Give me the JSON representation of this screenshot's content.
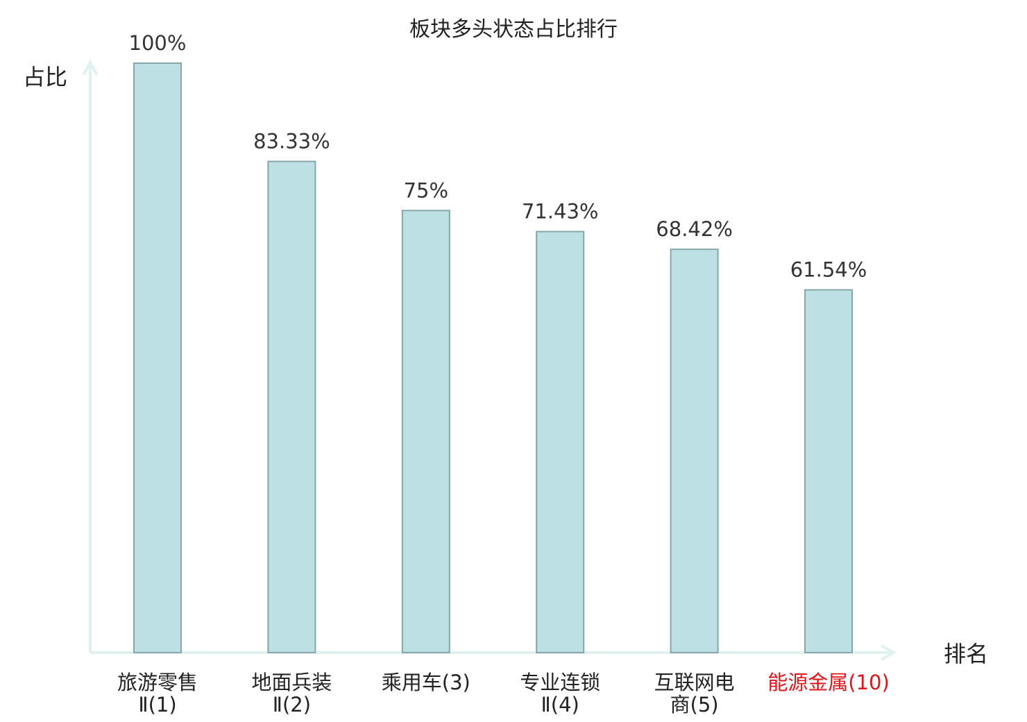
{
  "chart_data": {
    "type": "bar",
    "title": "板块多头状态占比排行",
    "ylabel": "占比",
    "xlabel": "排名",
    "ylim": [
      0,
      100
    ],
    "grid": false,
    "categories": [
      {
        "lines": [
          "旅游零售",
          "Ⅱ(1)"
        ],
        "highlight": false
      },
      {
        "lines": [
          "地面兵装",
          "Ⅱ(2)"
        ],
        "highlight": false
      },
      {
        "lines": [
          "乘用车(3)"
        ],
        "highlight": false
      },
      {
        "lines": [
          "专业连锁",
          "Ⅱ(4)"
        ],
        "highlight": false
      },
      {
        "lines": [
          "互联网电",
          "商(5)"
        ],
        "highlight": false
      },
      {
        "lines": [
          "能源金属(10)"
        ],
        "highlight": true
      }
    ],
    "values": [
      100,
      83.33,
      75,
      71.43,
      68.42,
      61.54
    ],
    "value_labels": [
      "100%",
      "83.33%",
      "75%",
      "71.43%",
      "68.42%",
      "61.54%"
    ],
    "colors": {
      "bar_fill": "#bce0e3",
      "bar_stroke": "#86a6aa",
      "axis": "#e0f2f0",
      "highlight_text": "#e0141b",
      "normal_text": "#222222"
    }
  }
}
